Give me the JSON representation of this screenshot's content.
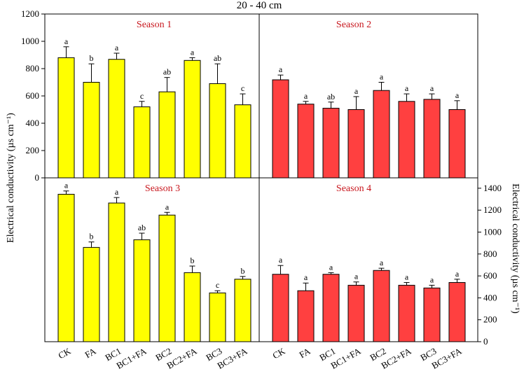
{
  "figure_title": "20 - 40 cm",
  "y_axis_label_left": "Electrical conductivity (µs cm⁻¹)",
  "y_axis_label_right": "Electrical conductivity  (µs cm⁻¹)",
  "colors": {
    "yellow_bar": "#ffff00",
    "red_bar": "#ff4040",
    "season_title": "#c8161d"
  },
  "chart_data": [
    {
      "type": "bar",
      "title": "Season 1",
      "color": "yellow",
      "categories": [
        "CK",
        "FA",
        "BC1",
        "BC1+FA",
        "BC2",
        "BC2+FA",
        "BC3",
        "BC3+FA"
      ],
      "values": [
        880,
        700,
        868,
        520,
        630,
        860,
        690,
        535
      ],
      "errors": [
        80,
        135,
        45,
        40,
        105,
        20,
        145,
        80
      ],
      "letters": [
        "a",
        "b",
        "a",
        "c",
        "ab",
        "a",
        "ab",
        "c"
      ],
      "ylim": [
        0,
        1200
      ],
      "yticks": [
        0,
        200,
        400,
        600,
        800,
        1000,
        1200
      ]
    },
    {
      "type": "bar",
      "title": "Season 2",
      "color": "red",
      "categories": [
        "CK",
        "FA",
        "BC1",
        "BC1+FA",
        "BC2",
        "BC2+FA",
        "BC3",
        "BC3+FA"
      ],
      "values": [
        718,
        540,
        510,
        500,
        640,
        560,
        575,
        500
      ],
      "errors": [
        35,
        20,
        45,
        95,
        60,
        55,
        40,
        65
      ],
      "letters": [
        "a",
        "a",
        "ab",
        "a",
        "a",
        "a",
        "a",
        "a"
      ],
      "ylim": [
        0,
        1200
      ]
    },
    {
      "type": "bar",
      "title": "Season 3",
      "color": "yellow",
      "categories": [
        "CK",
        "FA",
        "BC1",
        "BC1+FA",
        "BC2",
        "BC2+FA",
        "BC3",
        "BC3+FA"
      ],
      "values": [
        1345,
        860,
        1265,
        930,
        1155,
        630,
        445,
        570
      ],
      "errors": [
        30,
        50,
        50,
        60,
        25,
        60,
        20,
        25
      ],
      "letters": [
        "a",
        "b",
        "a",
        "ab",
        "a",
        "b",
        "c",
        "b"
      ],
      "ylim": [
        0,
        1450
      ]
    },
    {
      "type": "bar",
      "title": "Season 4",
      "color": "red",
      "categories": [
        "CK",
        "FA",
        "BC1",
        "BC1+FA",
        "BC2",
        "BC2+FA",
        "BC3",
        "BC3+FA"
      ],
      "values": [
        615,
        465,
        615,
        515,
        650,
        515,
        490,
        540
      ],
      "errors": [
        80,
        70,
        15,
        30,
        20,
        25,
        25,
        30
      ],
      "letters": [
        "a",
        "a",
        "a",
        "a",
        "a",
        "a",
        "a",
        "a"
      ],
      "ylim": [
        0,
        1450
      ],
      "yticks": [
        0,
        200,
        400,
        600,
        800,
        1000,
        1200,
        1400
      ]
    }
  ]
}
